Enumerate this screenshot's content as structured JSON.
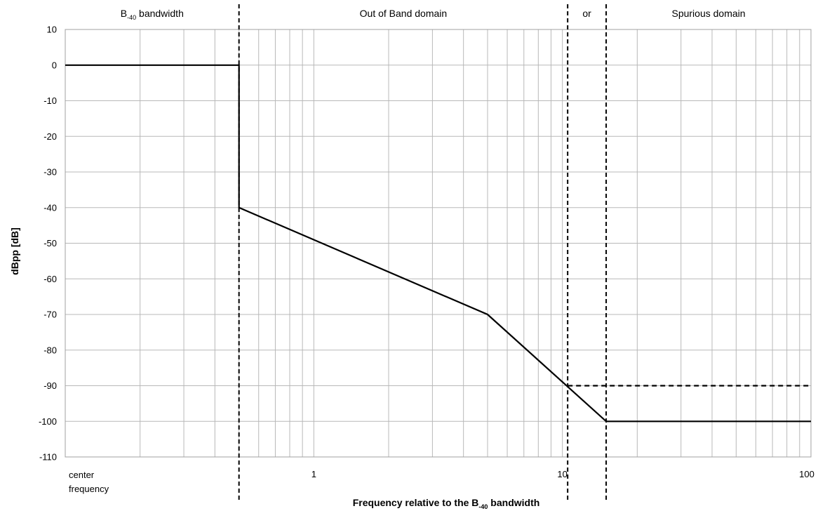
{
  "chart_data": {
    "type": "line",
    "title": "",
    "xlabel": "Frequency relative to the B-40 bandwidth",
    "xlabel_parts": {
      "main": "Frequency relative to the B",
      "sub": "-40",
      "tail": " bandwidth"
    },
    "ylabel": "dBpp [dB]",
    "x_scale": "log",
    "xlim": [
      0.1,
      100
    ],
    "ylim": [
      -110,
      10
    ],
    "y_ticks": [
      10,
      0,
      -10,
      -20,
      -30,
      -40,
      -50,
      -60,
      -70,
      -80,
      -90,
      -100,
      -110
    ],
    "x_tick_labels": [
      {
        "x": 1,
        "label": "1"
      },
      {
        "x": 10,
        "label": "10"
      },
      {
        "x": 100,
        "label": "100"
      }
    ],
    "x_origin_label": [
      "center",
      "frequency"
    ],
    "grid": true,
    "series": [
      {
        "style": "solid",
        "x": [
          0.1,
          0.5,
          0.5,
          5,
          15,
          100
        ],
        "y": [
          0,
          0,
          -40,
          -70,
          -100,
          -100
        ]
      },
      {
        "style": "dashed",
        "x": [
          10.5,
          100
        ],
        "y": [
          -90,
          -90
        ]
      }
    ],
    "region_boundaries": [
      0.5,
      10.5,
      15
    ],
    "regions": [
      {
        "main": "B",
        "sub": "-40",
        "tail": " bandwidth",
        "from": 0.1,
        "to": 0.5
      },
      {
        "main": "Out of Band domain",
        "sub": "",
        "tail": "",
        "from": 0.5,
        "to": 10.5
      },
      {
        "main": "or",
        "sub": "",
        "tail": "",
        "from": 10.5,
        "to": 15
      },
      {
        "main": "Spurious domain",
        "sub": "",
        "tail": "",
        "from": 15,
        "to": 100
      }
    ],
    "line_color": "#000000",
    "grid_color": "#b8b8b8"
  }
}
